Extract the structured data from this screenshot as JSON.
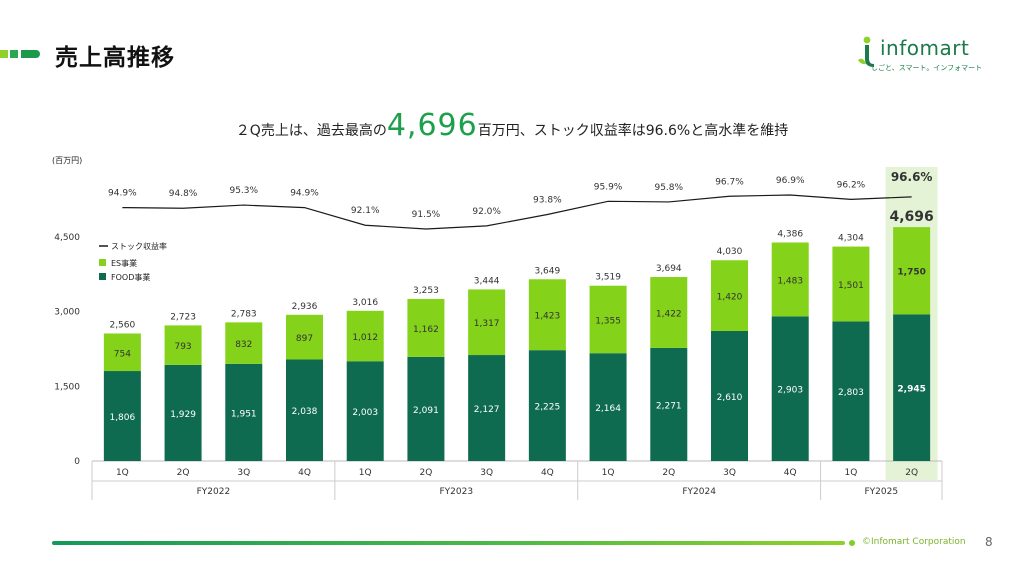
{
  "page": {
    "title": "売上高推移",
    "headline_pre": "２Q売上は、過去最高の",
    "headline_value": "4,696",
    "headline_post": "百万円、ストック収益率は96.6%と高水準を維持",
    "logo_text": "infomart",
    "logo_sub": "しごと、スマート。インフォマート",
    "copyright": "©Infomart Corporation",
    "page_number": "8"
  },
  "colors": {
    "food": "#0e6b4f",
    "es": "#84d21a",
    "line": "#1a1a1a",
    "highlight": "#e4f3d5",
    "accent": "#1ca04c"
  },
  "chart_data": {
    "type": "bar",
    "stacked": true,
    "unit_label": "(百万円)",
    "ylim": [
      0,
      5400
    ],
    "yticks": [
      0,
      1500,
      3000,
      4500
    ],
    "ytick_labels": [
      "0",
      "1,500",
      "3,000",
      "4,500"
    ],
    "grid": false,
    "legend_position": "left",
    "categories": [
      "1Q",
      "2Q",
      "3Q",
      "4Q",
      "1Q",
      "2Q",
      "3Q",
      "4Q",
      "1Q",
      "2Q",
      "3Q",
      "4Q",
      "1Q",
      "2Q"
    ],
    "fiscal_years": [
      {
        "label": "FY2022",
        "count": 4
      },
      {
        "label": "FY2023",
        "count": 4
      },
      {
        "label": "FY2024",
        "count": 4
      },
      {
        "label": "FY2025",
        "count": 2
      }
    ],
    "series": [
      {
        "name": "FOOD事業",
        "values": [
          1806,
          1929,
          1951,
          2038,
          2003,
          2091,
          2127,
          2225,
          2164,
          2271,
          2610,
          2903,
          2803,
          2945
        ],
        "labels": [
          "1,806",
          "1,929",
          "1,951",
          "2,038",
          "2,003",
          "2,091",
          "2,127",
          "2,225",
          "2,164",
          "2,271",
          "2,610",
          "2,903",
          "2,803",
          "2,945"
        ]
      },
      {
        "name": "ES事業",
        "values": [
          754,
          793,
          832,
          897,
          1012,
          1162,
          1317,
          1423,
          1355,
          1422,
          1420,
          1483,
          1501,
          1750
        ],
        "labels": [
          "754",
          "793",
          "832",
          "897",
          "1,012",
          "1,162",
          "1,317",
          "1,423",
          "1,355",
          "1,422",
          "1,420",
          "1,483",
          "1,501",
          "1,750"
        ]
      }
    ],
    "totals": [
      2560,
      2723,
      2783,
      2936,
      3016,
      3253,
      3444,
      3649,
      3519,
      3694,
      4030,
      4386,
      4304,
      4696
    ],
    "total_labels": [
      "2,560",
      "2,723",
      "2,783",
      "2,936",
      "3,016",
      "3,253",
      "3,444",
      "3,649",
      "3,519",
      "3,694",
      "4,030",
      "4,386",
      "4,304",
      "4,696"
    ],
    "stock_line": {
      "name": "ストック収益率",
      "values": [
        94.9,
        94.8,
        95.3,
        94.9,
        92.1,
        91.5,
        92.0,
        93.8,
        95.9,
        95.8,
        96.7,
        96.9,
        96.2,
        96.6
      ],
      "labels": [
        "94.9%",
        "94.8%",
        "95.3%",
        "94.9%",
        "92.1%",
        "91.5%",
        "92.0%",
        "93.8%",
        "95.9%",
        "95.8%",
        "96.7%",
        "96.9%",
        "96.2%",
        "96.6%"
      ]
    },
    "highlight_index": 13
  }
}
